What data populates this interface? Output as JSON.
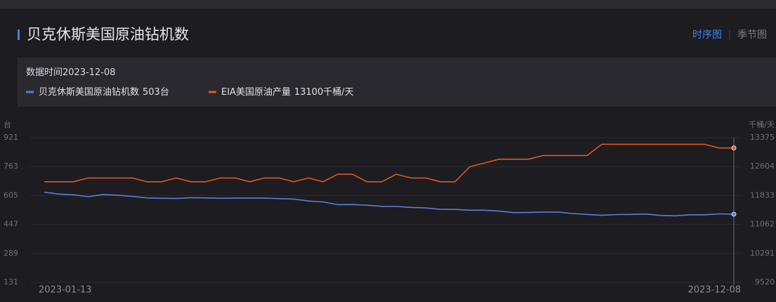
{
  "chart_data": {
    "type": "line",
    "title": "贝克休斯美国原油钻机数",
    "tabs": [
      "时序图",
      "季节图"
    ],
    "date_caption": "数据时间",
    "y_unit": "台",
    "y2_unit": "千桶/天",
    "x": [
      "2023-01-13",
      "2023-01-20",
      "2023-01-27",
      "2023-02-03",
      "2023-02-10",
      "2023-02-17",
      "2023-02-24",
      "2023-03-03",
      "2023-03-10",
      "2023-03-17",
      "2023-03-24",
      "2023-03-31",
      "2023-04-06",
      "2023-04-14",
      "2023-04-21",
      "2023-04-28",
      "2023-05-05",
      "2023-05-12",
      "2023-05-19",
      "2023-05-26",
      "2023-06-02",
      "2023-06-09",
      "2023-06-16",
      "2023-06-23",
      "2023-06-30",
      "2023-07-07",
      "2023-07-14",
      "2023-07-21",
      "2023-07-28",
      "2023-08-04",
      "2023-08-11",
      "2023-08-18",
      "2023-08-25",
      "2023-09-01",
      "2023-09-08",
      "2023-09-15",
      "2023-09-22",
      "2023-09-29",
      "2023-10-06",
      "2023-10-13",
      "2023-10-20",
      "2023-10-27",
      "2023-11-03",
      "2023-11-10",
      "2023-11-17",
      "2023-11-22",
      "2023-12-01",
      "2023-12-08"
    ],
    "ylim": [
      131,
      921
    ],
    "yticks": [
      921,
      763,
      605,
      447,
      289,
      131
    ],
    "y2lim": [
      9520,
      13375
    ],
    "y2ticks": [
      13375,
      12604,
      11833,
      11062,
      10291,
      9520
    ],
    "grid": true,
    "series": [
      {
        "name": "贝克休斯美国原油钻机数",
        "color": "#5b7fd6",
        "values": [
          623,
          613,
          609,
          599,
          610,
          607,
          600,
          592,
          590,
          589,
          593,
          592,
          590,
          591,
          591,
          591,
          588,
          586,
          575,
          570,
          555,
          556,
          552,
          546,
          545,
          540,
          537,
          530,
          529,
          525,
          525,
          520,
          512,
          513,
          515,
          515,
          507,
          502,
          497,
          501,
          502,
          504,
          496,
          494,
          500,
          500,
          505,
          503
        ],
        "value_labels": [
          null,
          null,
          null,
          null,
          null,
          null,
          null,
          null,
          null,
          null,
          null,
          null,
          null,
          null,
          null,
          null,
          null,
          null,
          null,
          null,
          null,
          null,
          null,
          null,
          null,
          null,
          null,
          null,
          null,
          null,
          null,
          null,
          null,
          null,
          null,
          null,
          null,
          null,
          null,
          null,
          null,
          null,
          null,
          null,
          null,
          null,
          null,
          "503台"
        ]
      },
      {
        "name": "EIA美国原油产量",
        "color": "#e2571e",
        "axis": "y2",
        "values": [
          12200,
          12200,
          12200,
          12300,
          12300,
          12300,
          12300,
          12200,
          12200,
          12300,
          12200,
          12200,
          12300,
          12300,
          12200,
          12300,
          12300,
          12200,
          12300,
          12200,
          12400,
          12400,
          12200,
          12200,
          12400,
          12300,
          12300,
          12200,
          12200,
          12600,
          12700,
          12800,
          12800,
          12800,
          12900,
          12900,
          12900,
          12900,
          13200,
          13200,
          13200,
          13200,
          13200,
          13200,
          13200,
          13200,
          13100,
          13100
        ],
        "value_labels": [
          null,
          null,
          null,
          null,
          null,
          null,
          null,
          null,
          null,
          null,
          null,
          null,
          null,
          null,
          null,
          null,
          null,
          null,
          null,
          null,
          null,
          null,
          null,
          null,
          null,
          null,
          null,
          null,
          null,
          null,
          null,
          null,
          null,
          null,
          null,
          null,
          null,
          null,
          null,
          null,
          null,
          null,
          null,
          null,
          null,
          null,
          null,
          "13100千桶/天"
        ]
      }
    ]
  }
}
